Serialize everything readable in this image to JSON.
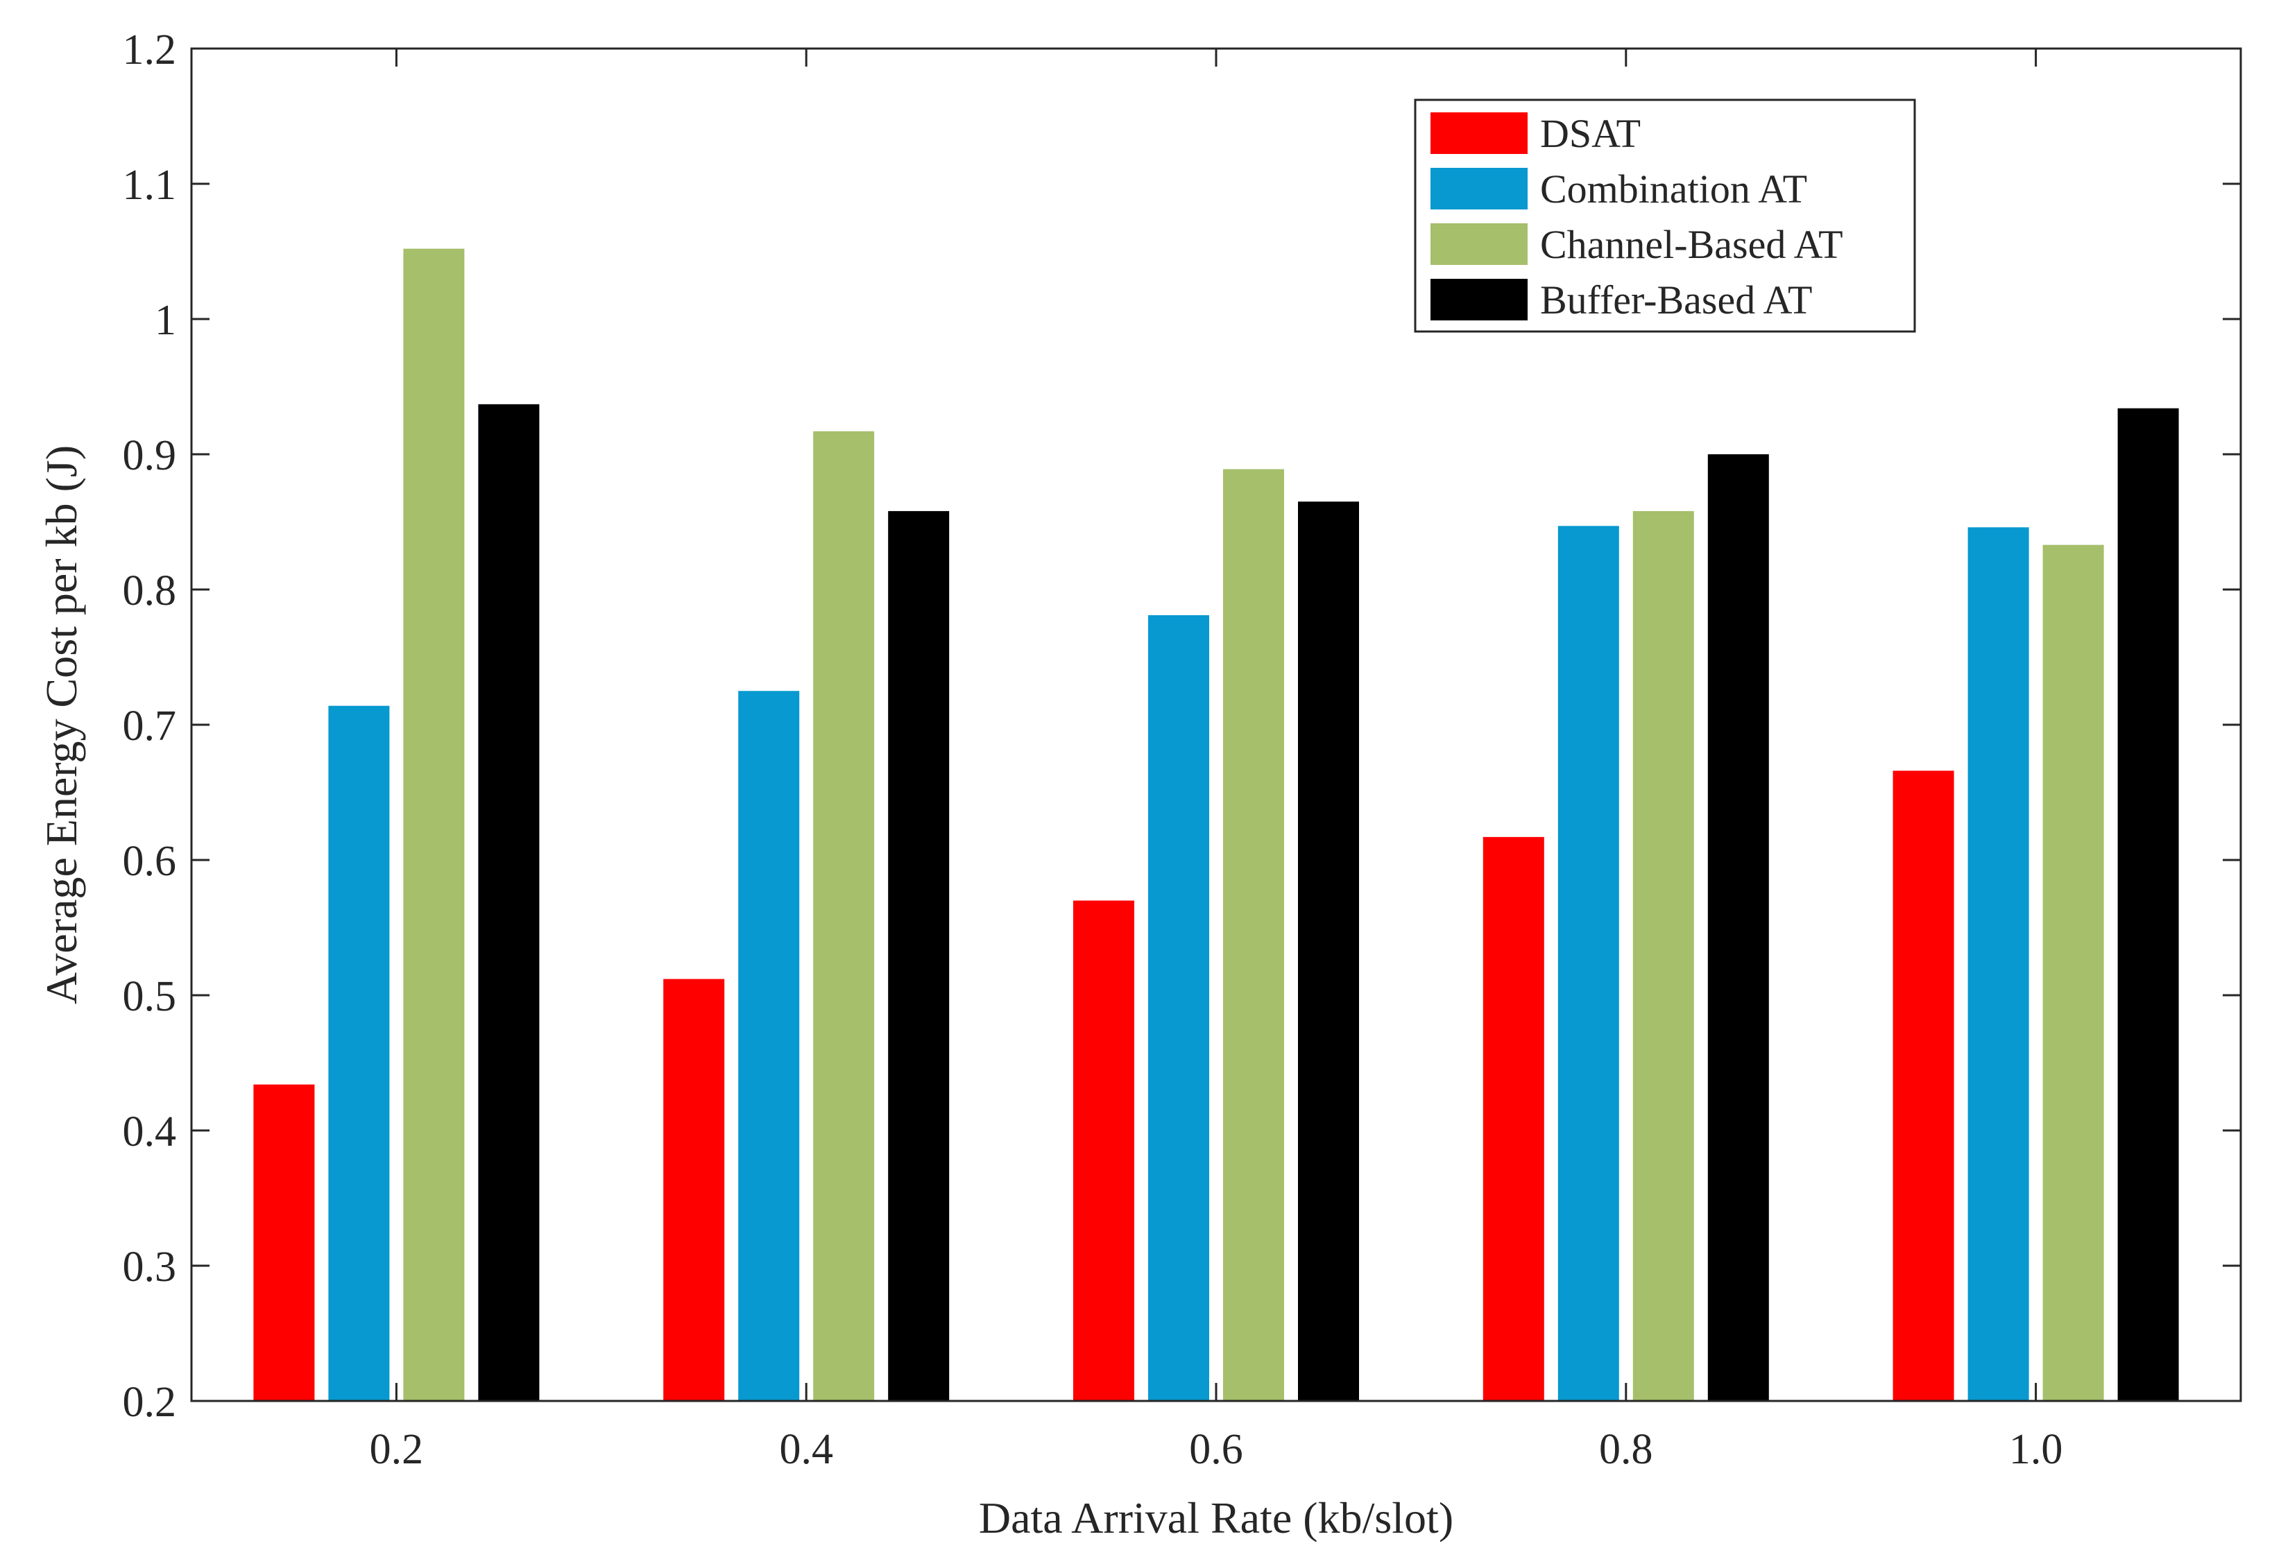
{
  "chart_data": {
    "type": "bar",
    "title": "",
    "xlabel": "Data Arrival Rate (kb/slot)",
    "ylabel": "Average Energy Cost per kb (J)",
    "categories": [
      "0.2",
      "0.4",
      "0.6",
      "0.8",
      "1.0"
    ],
    "ylim": [
      0.2,
      1.2
    ],
    "yticks": [
      "0.2",
      "0.3",
      "0.4",
      "0.5",
      "0.6",
      "0.7",
      "0.8",
      "0.9",
      "1",
      "1.1",
      "1.2"
    ],
    "grid": false,
    "legend_position": "top-right",
    "series": [
      {
        "name": "DSAT",
        "color": "#ff0000",
        "values": [
          0.434,
          0.512,
          0.57,
          0.617,
          0.666
        ]
      },
      {
        "name": "Combination AT",
        "color": "#0799cf",
        "values": [
          0.714,
          0.725,
          0.781,
          0.847,
          0.846
        ]
      },
      {
        "name": "Channel-Based AT",
        "color": "#a6bf6b",
        "values": [
          1.052,
          0.917,
          0.889,
          0.858,
          0.833
        ]
      },
      {
        "name": "Buffer-Based AT",
        "color": "#000000",
        "values": [
          0.937,
          0.858,
          0.865,
          0.9,
          0.934
        ]
      }
    ]
  }
}
